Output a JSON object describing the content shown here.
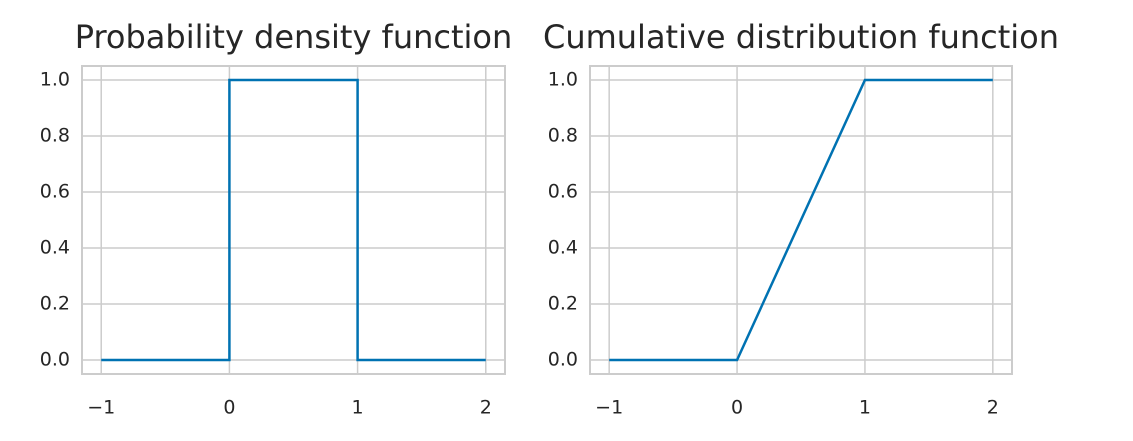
{
  "chart_data": [
    {
      "type": "line",
      "title": "Probability density function",
      "x": [
        -1,
        0,
        0,
        1,
        1,
        2
      ],
      "values": [
        0,
        0,
        1,
        1,
        0,
        0
      ],
      "color": "#0072b2",
      "xlim": [
        -1.15,
        2.15
      ],
      "ylim": [
        -0.05,
        1.05
      ],
      "xticks": [
        {
          "value": -1,
          "label": "−1"
        },
        0,
        1,
        2
      ],
      "yticks": [
        {
          "value": 0,
          "label": "0.0"
        },
        0.2,
        0.4,
        0.6,
        0.8,
        {
          "value": 1,
          "label": "1.0"
        }
      ],
      "grid": true
    },
    {
      "type": "line",
      "title": "Cumulative distribution function",
      "x": [
        -1,
        0,
        1,
        2
      ],
      "values": [
        0,
        0,
        1,
        1
      ],
      "color": "#0072b2",
      "xlim": [
        -1.15,
        2.15
      ],
      "ylim": [
        -0.05,
        1.05
      ],
      "xticks": [
        {
          "value": -1,
          "label": "−1"
        },
        0,
        1,
        2
      ],
      "yticks": [
        {
          "value": 0,
          "label": "0.0"
        },
        0.2,
        0.4,
        0.6,
        0.8,
        {
          "value": 1,
          "label": "1.0"
        }
      ],
      "grid": true
    }
  ]
}
